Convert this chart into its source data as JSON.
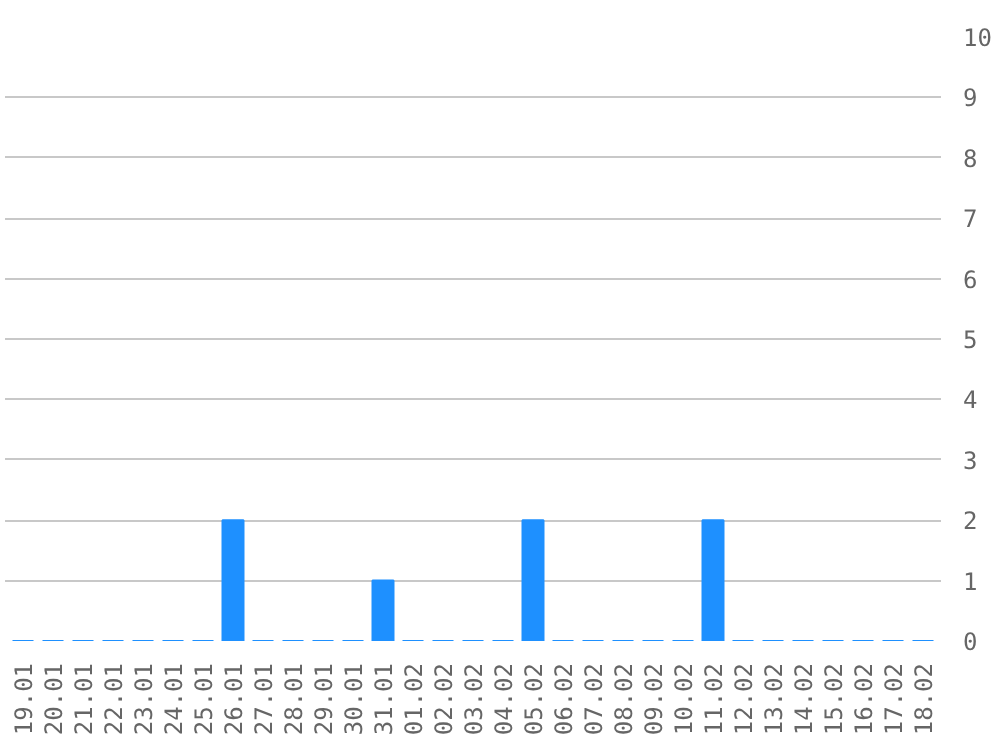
{
  "chart_data": {
    "type": "bar",
    "categories": [
      "19.01",
      "20.01",
      "21.01",
      "22.01",
      "23.01",
      "24.01",
      "25.01",
      "26.01",
      "27.01",
      "28.01",
      "29.01",
      "30.01",
      "31.01",
      "01.02",
      "02.02",
      "03.02",
      "04.02",
      "05.02",
      "06.02",
      "07.02",
      "08.02",
      "09.02",
      "10.02",
      "11.02",
      "12.02",
      "13.02",
      "14.02",
      "15.02",
      "16.02",
      "17.02",
      "18.02"
    ],
    "values": [
      0,
      0,
      0,
      0,
      0,
      0,
      0,
      2,
      0,
      0,
      0,
      0,
      1,
      0,
      0,
      0,
      0,
      2,
      0,
      0,
      0,
      0,
      0,
      2,
      0,
      0,
      0,
      0,
      0,
      0,
      0
    ],
    "color": "#1e90ff",
    "ylim": [
      0,
      10
    ],
    "yticks": [
      0,
      1,
      2,
      3,
      4,
      5,
      6,
      7,
      8,
      9,
      10
    ],
    "grid": "y"
  }
}
